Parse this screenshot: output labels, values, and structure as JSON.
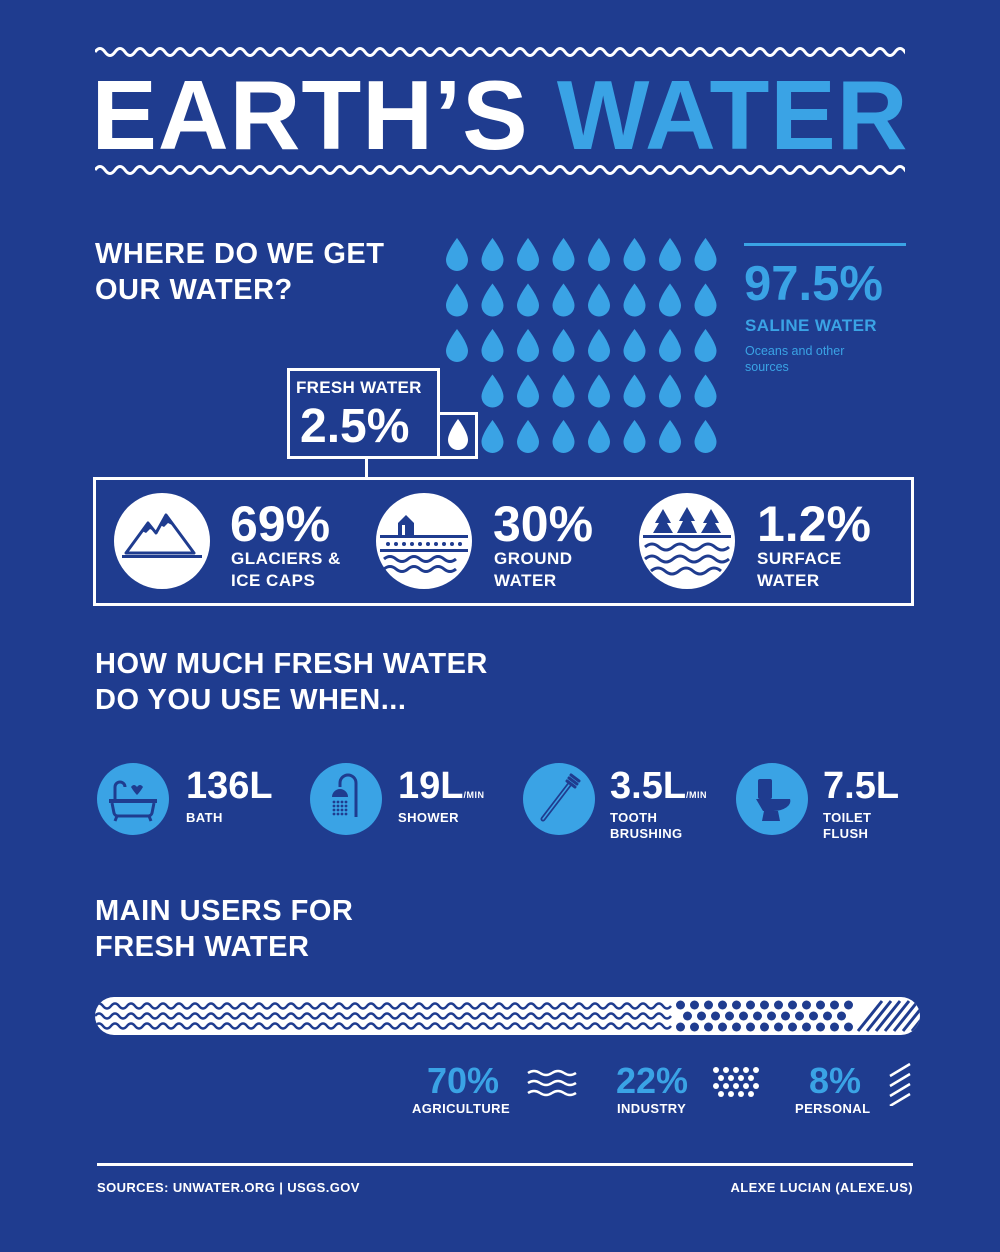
{
  "header": {
    "title_part1": "EARTH’S",
    "title_part2": "WATER",
    "accent_color": "#3aa3e5",
    "background_color": "#1f3c8f"
  },
  "where": {
    "heading_line1": "WHERE DO WE GET",
    "heading_line2": "OUR WATER?",
    "saline": {
      "value": "97.5%",
      "label": "SALINE WATER",
      "desc_line1": "Oceans and other",
      "desc_line2": "sources"
    },
    "fresh": {
      "label": "FRESH WATER",
      "value": "2.5%"
    },
    "drop_icon": "water-drop-icon",
    "breakdown": [
      {
        "value": "69%",
        "line1": "GLACIERS &",
        "line2": "ICE CAPS",
        "icon": "mountain-icon"
      },
      {
        "value": "30%",
        "line1": "GROUND",
        "line2": "WATER",
        "icon": "ground-water-icon"
      },
      {
        "value": "1.2%",
        "line1": "SURFACE",
        "line2": "WATER",
        "icon": "forest-lake-icon"
      }
    ]
  },
  "usage": {
    "heading_line1": "HOW MUCH FRESH WATER",
    "heading_line2": "DO YOU USE WHEN...",
    "items": [
      {
        "value": "136L",
        "unit": "",
        "line1": "BATH",
        "line2": "",
        "icon": "bathtub-icon"
      },
      {
        "value": "19L",
        "unit": "/MIN",
        "line1": "SHOWER",
        "line2": "",
        "icon": "shower-icon"
      },
      {
        "value": "3.5L",
        "unit": "/MIN",
        "line1": "TOOTH",
        "line2": "BRUSHING",
        "icon": "toothbrush-icon"
      },
      {
        "value": "7.5L",
        "unit": "",
        "line1": "TOILET",
        "line2": "FLUSH",
        "icon": "toilet-icon"
      }
    ]
  },
  "users": {
    "heading_line1": "MAIN USERS FOR",
    "heading_line2": "FRESH WATER",
    "shares": [
      {
        "value": "70%",
        "label": "AGRICULTURE",
        "fraction": 0.7,
        "icon": "waves-icon"
      },
      {
        "value": "22%",
        "label": "INDUSTRY",
        "fraction": 0.22,
        "icon": "dots-icon"
      },
      {
        "value": "8%",
        "label": "PERSONAL",
        "fraction": 0.08,
        "icon": "diagonal-lines-icon"
      }
    ]
  },
  "footer": {
    "sources": "SOURCES: UNWATER.ORG | USGS.GOV",
    "author": "ALEXE LUCIAN (ALEXE.US)"
  }
}
